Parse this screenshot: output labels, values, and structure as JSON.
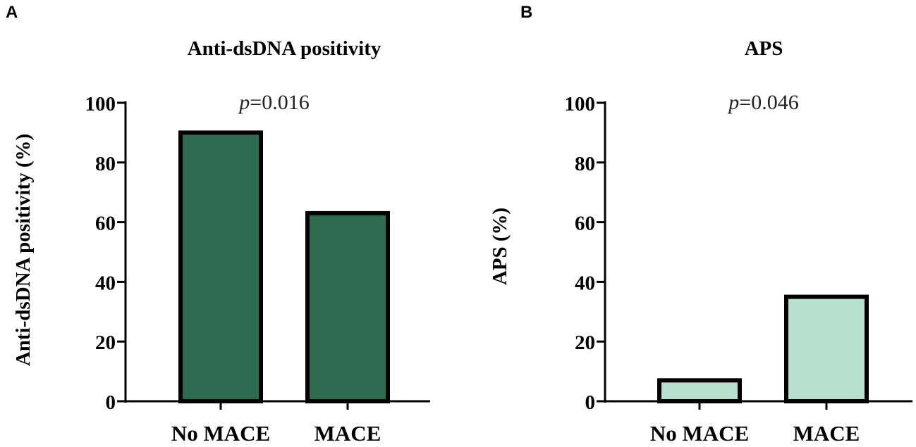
{
  "chart_data": [
    {
      "panel": "A",
      "type": "bar",
      "title": "Anti-dsDNA positivity",
      "ylabel": "Anti-dsDNA positivity (%)",
      "xlabel": "",
      "categories": [
        "No MACE",
        "MACE"
      ],
      "values": [
        90,
        63
      ],
      "ylim": [
        0,
        100
      ],
      "yticks": [
        "0",
        "20",
        "40",
        "60",
        "80",
        "100"
      ],
      "annotation": {
        "prefix": "p",
        "value": "=0.016"
      },
      "bar_color": "#2e6b50",
      "border_color": "#000000"
    },
    {
      "panel": "B",
      "type": "bar",
      "title": "APS",
      "ylabel": "APS (%)",
      "xlabel": "",
      "categories": [
        "No MACE",
        "MACE"
      ],
      "values": [
        7,
        35
      ],
      "ylim": [
        0,
        100
      ],
      "yticks": [
        "0",
        "20",
        "40",
        "60",
        "80",
        "100"
      ],
      "annotation": {
        "prefix": "p",
        "value": "=0.046"
      },
      "bar_color": "#b8e0cf",
      "border_color": "#000000"
    }
  ]
}
